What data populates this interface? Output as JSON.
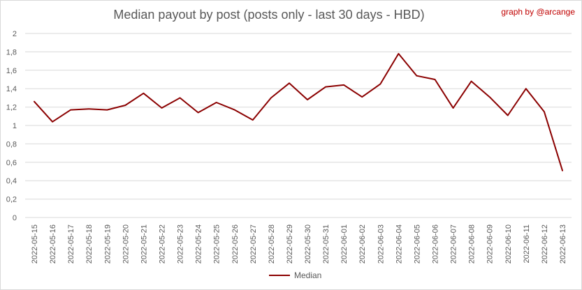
{
  "chart_data": {
    "type": "line",
    "title": "Median payout by post (posts only - last 30 days - HBD)",
    "credit": "graph by @arcange",
    "categories": [
      "2022-05-15",
      "2022-05-16",
      "2022-05-17",
      "2022-05-18",
      "2022-05-19",
      "2022-05-20",
      "2022-05-21",
      "2022-05-22",
      "2022-05-23",
      "2022-05-24",
      "2022-05-25",
      "2022-05-26",
      "2022-05-27",
      "2022-05-28",
      "2022-05-29",
      "2022-05-30",
      "2022-05-31",
      "2022-06-01",
      "2022-06-02",
      "2022-06-03",
      "2022-06-04",
      "2022-06-05",
      "2022-06-06",
      "2022-06-07",
      "2022-06-08",
      "2022-06-09",
      "2022-06-10",
      "2022-06-11",
      "2022-06-12",
      "2022-06-13"
    ],
    "series": [
      {
        "name": "Median",
        "color": "#8b0000",
        "values": [
          1.26,
          1.04,
          1.17,
          1.18,
          1.17,
          1.22,
          1.35,
          1.19,
          1.3,
          1.14,
          1.25,
          1.17,
          1.06,
          1.3,
          1.46,
          1.28,
          1.42,
          1.44,
          1.31,
          1.45,
          1.78,
          1.54,
          1.5,
          1.19,
          1.48,
          1.31,
          1.11,
          1.4,
          1.15,
          0.51
        ]
      }
    ],
    "ylim": [
      0,
      2
    ],
    "yticks": [
      "0",
      "0,2",
      "0,4",
      "0,6",
      "0,8",
      "1",
      "1,2",
      "1,4",
      "1,6",
      "1,8",
      "2"
    ],
    "grid": true,
    "legend_position": "bottom"
  }
}
